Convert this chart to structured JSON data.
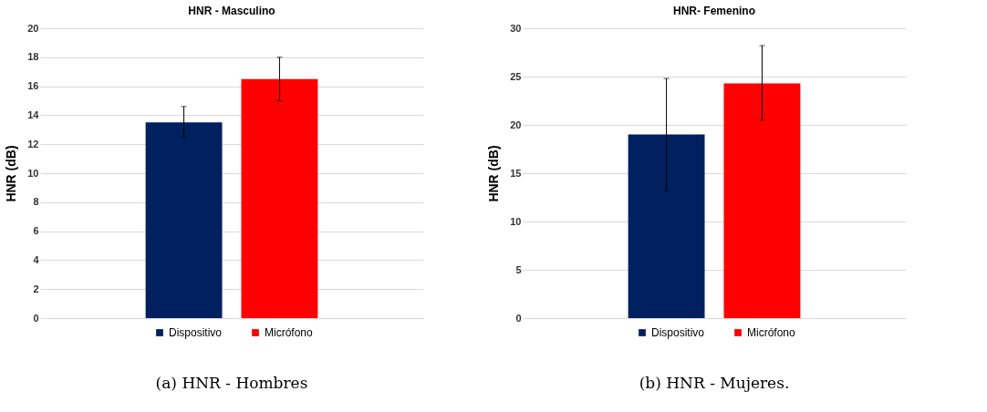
{
  "chart_data": [
    {
      "type": "bar",
      "title": "HNR - Masculino",
      "ylabel": "HNR (dB)",
      "categories": [
        null
      ],
      "ylim": [
        0,
        20
      ],
      "yticks": [
        0,
        2,
        4,
        6,
        8,
        10,
        12,
        14,
        16,
        18,
        20
      ],
      "grid": "y",
      "legend": "bottom",
      "annotations": [
        "(a) HNR - Hombres"
      ],
      "series": [
        {
          "name": "Dispositivo",
          "color": "#002060",
          "values": [
            13.5
          ],
          "errors": [
            [
              12.5,
              14.6
            ]
          ]
        },
        {
          "name": "Micrófono",
          "color": "#ff0000",
          "values": [
            16.5
          ],
          "errors": [
            [
              15.0,
              18.0
            ]
          ]
        }
      ]
    },
    {
      "type": "bar",
      "title": "HNR- Femenino",
      "ylabel": "HNR (dB)",
      "categories": [
        null
      ],
      "ylim": [
        0,
        30
      ],
      "yticks": [
        0,
        5,
        10,
        15,
        20,
        25,
        30
      ],
      "grid": "y",
      "legend": "bottom",
      "annotations": [
        "(b) HNR - Mujeres."
      ],
      "series": [
        {
          "name": "Dispositivo",
          "color": "#002060",
          "values": [
            19.0
          ],
          "errors": [
            [
              13.2,
              24.8
            ]
          ]
        },
        {
          "name": "Micrófono",
          "color": "#ff0000",
          "values": [
            24.3
          ],
          "errors": [
            [
              20.5,
              28.2
            ]
          ]
        }
      ]
    }
  ]
}
